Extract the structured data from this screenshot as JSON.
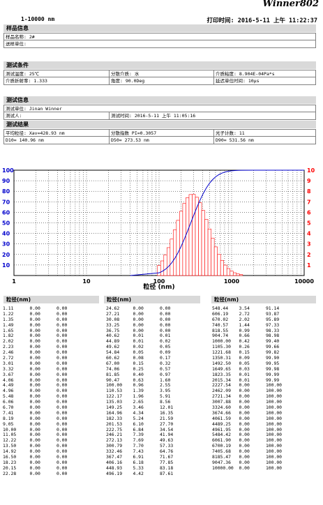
{
  "header": {
    "brand": "Winner802",
    "range": "1-10000 nm",
    "print_time": "打印时间: 2016-5-11 上午 11:22:37"
  },
  "sample_info": {
    "title": "样品信息",
    "name_label": "样品名称: 2#",
    "unit_label": "送样单位:"
  },
  "conditions": {
    "title": "测试条件",
    "temp": "测试温度: 25℃",
    "medium": "分散介质: 水",
    "viscosity": "介质粘度: 8.904E-04Pa*s",
    "refractive": "介质折射率: 1.333",
    "angle": "角度: 90.0Deg",
    "delay": "延迟单位时间: 10μs"
  },
  "test_info": {
    "title": "测试信息",
    "unit": "测试单位: Jinan Winner",
    "person": "测试人:",
    "time": "测试时间: 2016-5-11 上午 11:05:16"
  },
  "results": {
    "title": "测试结果",
    "avg": "平均粒径: Xav=428.93 nm",
    "pi": "分散指数 PI=0.3057",
    "photon": "光子计数: 11",
    "d10": "D10= 140.96 nm",
    "d50": "D50= 273.53 nm",
    "d90": "D90= 531.56 nm"
  },
  "chart_data": {
    "type": "bar",
    "xlabel": "粒径 (nm)",
    "x_scale": "log",
    "xlim": [
      1,
      10000
    ],
    "x_ticks": [
      "1",
      "10",
      "100",
      "1000",
      "10000"
    ],
    "y_left_ticks": [
      "100",
      "90",
      "80",
      "70",
      "60",
      "50",
      "40",
      "30",
      "20",
      "10"
    ],
    "y_right_ticks": [
      "10",
      "9",
      "8",
      "7",
      "6",
      "5",
      "4",
      "3",
      "2",
      "1"
    ],
    "ylim_left": [
      0,
      100
    ],
    "ylim_right": [
      0,
      10
    ],
    "colors": {
      "bars": "#ff0000",
      "cumulative": "#0000cc",
      "left_axis": "#0000cc",
      "right_axis": "#ff0000"
    },
    "x": [
      100.0,
      110.53,
      122.17,
      135.03,
      149.25,
      164.96,
      182.33,
      201.53,
      222.75,
      246.21,
      272.13,
      300.79,
      332.46,
      367.47,
      406.16,
      448.93,
      496.19,
      548.44,
      606.19,
      670.02,
      740.57,
      818.55,
      904.74,
      1000.0,
      1105.3,
      1221.68,
      1350.31
    ],
    "bar_values": [
      0.96,
      1.39,
      1.96,
      2.65,
      3.46,
      4.34,
      5.24,
      6.1,
      6.84,
      7.39,
      7.69,
      7.7,
      7.43,
      6.91,
      6.18,
      5.33,
      4.42,
      3.54,
      2.72,
      2.02,
      1.44,
      0.99,
      0.66,
      0.42,
      0.26,
      0.15,
      0.09
    ],
    "cumulative": [
      2.55,
      3.95,
      5.91,
      8.56,
      12.01,
      16.35,
      21.59,
      27.7,
      34.54,
      41.94,
      49.63,
      57.33,
      64.76,
      71.67,
      77.85,
      83.18,
      87.61,
      91.14,
      93.87,
      95.89,
      97.33,
      98.33,
      98.98,
      99.4,
      99.66,
      99.82,
      99.9
    ]
  },
  "table": {
    "headers": [
      "粒径(nm)",
      "粒径(nm)",
      "粒径(nm)"
    ],
    "col1": [
      [
        "1.11",
        "0.00",
        "0.00"
      ],
      [
        "1.22",
        "0.00",
        "0.00"
      ],
      [
        "1.35",
        "0.00",
        "0.00"
      ],
      [
        "1.49",
        "0.00",
        "0.00"
      ],
      [
        "1.65",
        "0.00",
        "0.00"
      ],
      [
        "1.82",
        "0.00",
        "0.00"
      ],
      [
        "2.02",
        "0.00",
        "0.00"
      ],
      [
        "2.23",
        "0.00",
        "0.00"
      ],
      [
        "2.46",
        "0.00",
        "0.00"
      ],
      [
        "2.72",
        "0.00",
        "0.00"
      ],
      [
        "3.01",
        "0.00",
        "0.00"
      ],
      [
        "3.32",
        "0.00",
        "0.00"
      ],
      [
        "3.67",
        "0.00",
        "0.00"
      ],
      [
        "4.06",
        "0.00",
        "0.00"
      ],
      [
        "4.49",
        "0.00",
        "0.00"
      ],
      [
        "4.96",
        "0.00",
        "0.00"
      ],
      [
        "5.48",
        "0.00",
        "0.00"
      ],
      [
        "6.06",
        "0.00",
        "0.00"
      ],
      [
        "6.70",
        "0.00",
        "0.00"
      ],
      [
        "7.41",
        "0.00",
        "0.00"
      ],
      [
        "8.19",
        "0.00",
        "0.00"
      ],
      [
        "9.05",
        "0.00",
        "0.00"
      ],
      [
        "10.00",
        "0.00",
        "0.00"
      ],
      [
        "11.05",
        "0.00",
        "0.00"
      ],
      [
        "12.22",
        "0.00",
        "0.00"
      ],
      [
        "13.50",
        "0.00",
        "0.00"
      ],
      [
        "14.92",
        "0.00",
        "0.00"
      ],
      [
        "16.50",
        "0.00",
        "0.00"
      ],
      [
        "18.23",
        "0.00",
        "0.00"
      ],
      [
        "20.15",
        "0.00",
        "0.00"
      ],
      [
        "22.28",
        "0.00",
        "0.00"
      ]
    ],
    "col2": [
      [
        "24.62",
        "0.00",
        "0.00"
      ],
      [
        "27.21",
        "0.00",
        "0.00"
      ],
      [
        "30.08",
        "0.00",
        "0.00"
      ],
      [
        "33.25",
        "0.00",
        "0.00"
      ],
      [
        "36.75",
        "0.00",
        "0.00"
      ],
      [
        "40.62",
        "0.01",
        "0.01"
      ],
      [
        "44.89",
        "0.01",
        "0.02"
      ],
      [
        "49.62",
        "0.02",
        "0.05"
      ],
      [
        "54.84",
        "0.05",
        "0.09"
      ],
      [
        "60.62",
        "0.08",
        "0.17"
      ],
      [
        "67.00",
        "0.15",
        "0.32"
      ],
      [
        "74.06",
        "0.25",
        "0.57"
      ],
      [
        "81.85",
        "0.40",
        "0.97"
      ],
      [
        "90.47",
        "0.63",
        "1.60"
      ],
      [
        "100.00",
        "0.96",
        "2.55"
      ],
      [
        "110.53",
        "1.39",
        "3.95"
      ],
      [
        "122.17",
        "1.96",
        "5.91"
      ],
      [
        "135.03",
        "2.65",
        "8.56"
      ],
      [
        "149.25",
        "3.46",
        "12.01"
      ],
      [
        "164.96",
        "4.34",
        "16.35"
      ],
      [
        "182.33",
        "5.24",
        "21.59"
      ],
      [
        "201.53",
        "6.10",
        "27.70"
      ],
      [
        "222.75",
        "6.84",
        "34.54"
      ],
      [
        "246.21",
        "7.39",
        "41.94"
      ],
      [
        "272.13",
        "7.69",
        "49.63"
      ],
      [
        "300.79",
        "7.70",
        "57.33"
      ],
      [
        "332.46",
        "7.43",
        "64.76"
      ],
      [
        "367.47",
        "6.91",
        "71.67"
      ],
      [
        "406.16",
        "6.18",
        "77.85"
      ],
      [
        "448.93",
        "5.33",
        "83.18"
      ],
      [
        "496.19",
        "4.42",
        "87.61"
      ]
    ],
    "col3": [
      [
        "548.44",
        "3.54",
        "91.14"
      ],
      [
        "606.19",
        "2.72",
        "93.87"
      ],
      [
        "670.02",
        "2.02",
        "95.89"
      ],
      [
        "740.57",
        "1.44",
        "97.33"
      ],
      [
        "818.55",
        "0.99",
        "98.33"
      ],
      [
        "904.74",
        "0.66",
        "98.98"
      ],
      [
        "1000.00",
        "0.42",
        "99.40"
      ],
      [
        "1105.30",
        "0.26",
        "99.66"
      ],
      [
        "1221.68",
        "0.15",
        "99.82"
      ],
      [
        "1350.31",
        "0.09",
        "99.90"
      ],
      [
        "1492.50",
        "0.05",
        "99.95"
      ],
      [
        "1649.65",
        "0.03",
        "99.98"
      ],
      [
        "1823.35",
        "0.01",
        "99.99"
      ],
      [
        "2015.34",
        "0.01",
        "99.99"
      ],
      [
        "2227.54",
        "0.00",
        "100.00"
      ],
      [
        "2462.09",
        "0.00",
        "100.00"
      ],
      [
        "2721.34",
        "0.00",
        "100.00"
      ],
      [
        "3007.88",
        "0.00",
        "100.00"
      ],
      [
        "3324.60",
        "0.00",
        "100.00"
      ],
      [
        "3674.66",
        "0.00",
        "100.00"
      ],
      [
        "4061.59",
        "0.00",
        "100.00"
      ],
      [
        "4489.25",
        "0.00",
        "100.00"
      ],
      [
        "4961.95",
        "0.00",
        "100.00"
      ],
      [
        "5484.42",
        "0.00",
        "100.00"
      ],
      [
        "6061.90",
        "0.00",
        "100.00"
      ],
      [
        "6700.19",
        "0.00",
        "100.00"
      ],
      [
        "7405.68",
        "0.00",
        "100.00"
      ],
      [
        "8185.47",
        "0.00",
        "100.00"
      ],
      [
        "9047.36",
        "0.00",
        "100.00"
      ],
      [
        "10000.00",
        "0.00",
        "100.00"
      ]
    ]
  }
}
